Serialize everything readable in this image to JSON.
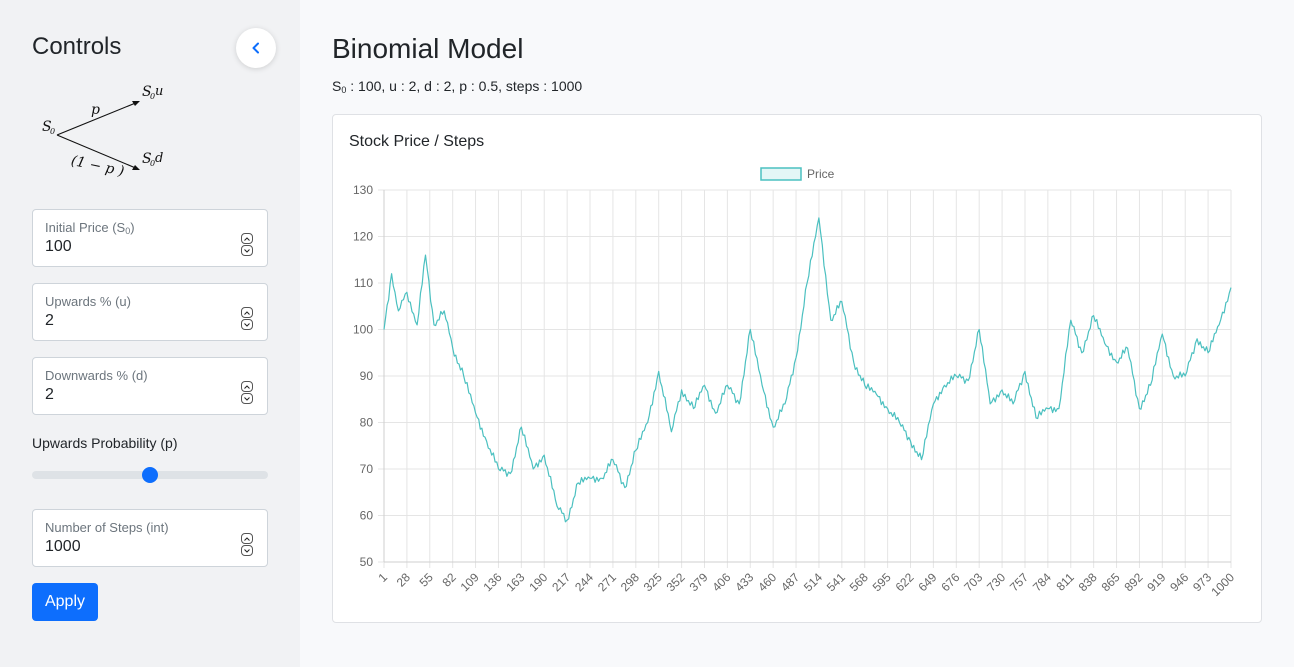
{
  "sidebar": {
    "title": "Controls",
    "collapse_icon": "chevron-left-icon",
    "diagram": {
      "s0": "S",
      "s0_sub": "0",
      "up": "u",
      "down": "d",
      "p": "p",
      "one_minus_p": "(1 − p )"
    },
    "fields": {
      "initial_price": {
        "label": "Initial Price (S",
        "label_sub": "0",
        "label_end": ")",
        "value": "100"
      },
      "upwards": {
        "label": "Upwards % (u)",
        "value": "2"
      },
      "downwards": {
        "label": "Downwards % (d)",
        "value": "2"
      },
      "steps": {
        "label": "Number of Steps (int)",
        "value": "1000"
      }
    },
    "probability": {
      "label": "Upwards Probability (p)",
      "value": 0.5,
      "min": 0,
      "max": 1
    },
    "apply_label": "Apply"
  },
  "main": {
    "title": "Binomial Model",
    "params_s": "S",
    "params_sub": "0",
    "params_rest": " : 100, u : 2, d : 2, p : 0.5, steps : 1000"
  },
  "chart_data": {
    "type": "line",
    "title": "Stock Price / Steps",
    "legend": "Price",
    "legend_position": "top",
    "line_color": "#4bc0c0",
    "grid": true,
    "ylim": [
      50,
      130
    ],
    "yticks": [
      50,
      60,
      70,
      80,
      90,
      100,
      110,
      120,
      130
    ],
    "xlim": [
      1,
      1000
    ],
    "xticks": [
      1,
      28,
      55,
      82,
      109,
      136,
      163,
      190,
      217,
      244,
      271,
      298,
      325,
      352,
      379,
      406,
      433,
      460,
      487,
      514,
      541,
      568,
      595,
      622,
      649,
      676,
      703,
      730,
      757,
      784,
      811,
      838,
      865,
      892,
      919,
      946,
      973,
      1000
    ],
    "series": [
      {
        "name": "Price",
        "x": [
          1,
          10,
          18,
          28,
          40,
          50,
          60,
          72,
          82,
          95,
          109,
          122,
          136,
          150,
          163,
          177,
          190,
          205,
          217,
          230,
          244,
          258,
          271,
          285,
          298,
          312,
          325,
          340,
          352,
          366,
          379,
          392,
          406,
          420,
          433,
          447,
          460,
          474,
          487,
          500,
          514,
          528,
          541,
          555,
          568,
          582,
          595,
          609,
          622,
          635,
          649,
          662,
          676,
          690,
          703,
          716,
          730,
          743,
          757,
          770,
          784,
          797,
          811,
          824,
          838,
          851,
          865,
          878,
          892,
          905,
          919,
          932,
          946,
          960,
          973,
          986,
          1000
        ],
        "y": [
          100,
          112,
          104,
          108,
          101,
          116,
          101,
          104,
          96,
          90,
          82,
          76,
          70,
          69,
          79,
          70,
          73,
          62,
          59,
          67,
          68,
          68,
          72,
          66,
          74,
          80,
          91,
          78,
          87,
          83,
          88,
          82,
          88,
          84,
          100,
          88,
          79,
          84,
          94,
          110,
          124,
          102,
          106,
          93,
          88,
          86,
          83,
          80,
          76,
          72,
          84,
          88,
          90,
          89,
          100,
          84,
          87,
          84,
          91,
          81,
          83,
          83,
          102,
          95,
          103,
          97,
          93,
          96,
          83,
          88,
          99,
          90,
          90,
          98,
          95,
          101,
          109
        ]
      }
    ]
  }
}
